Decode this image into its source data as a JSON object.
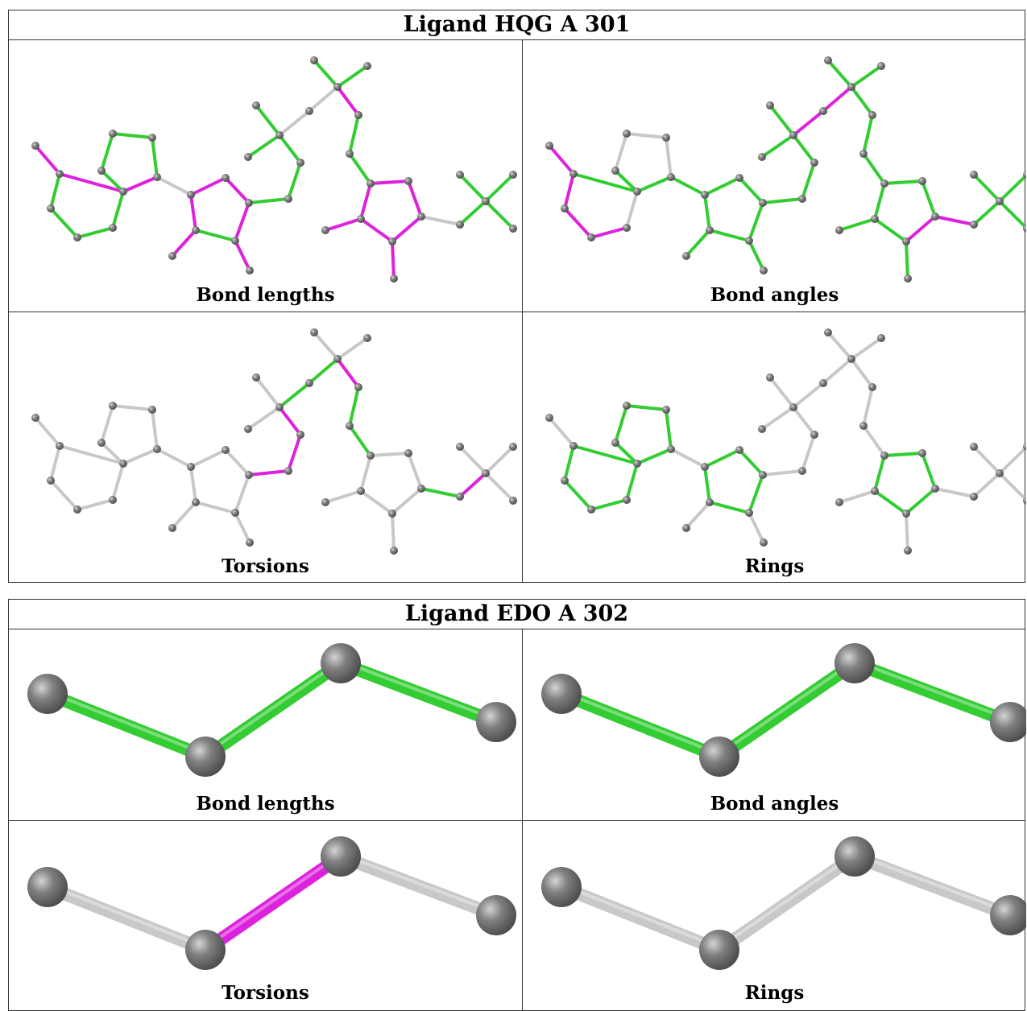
{
  "panels": [
    {
      "title": "Ligand HQG A 301",
      "cells": [
        {
          "label": "Bond lengths"
        },
        {
          "label": "Bond angles"
        },
        {
          "label": "Torsions"
        },
        {
          "label": "Rings"
        }
      ]
    },
    {
      "title": "Ligand EDO A 302",
      "cells": [
        {
          "label": "Bond lengths"
        },
        {
          "label": "Bond angles"
        },
        {
          "label": "Torsions"
        },
        {
          "label": "Rings"
        }
      ]
    }
  ],
  "colors": {
    "outlier": "#dd22dd",
    "ok": "#33cc33",
    "not_assessed": "#c8c8c8",
    "atom": "#808080"
  }
}
